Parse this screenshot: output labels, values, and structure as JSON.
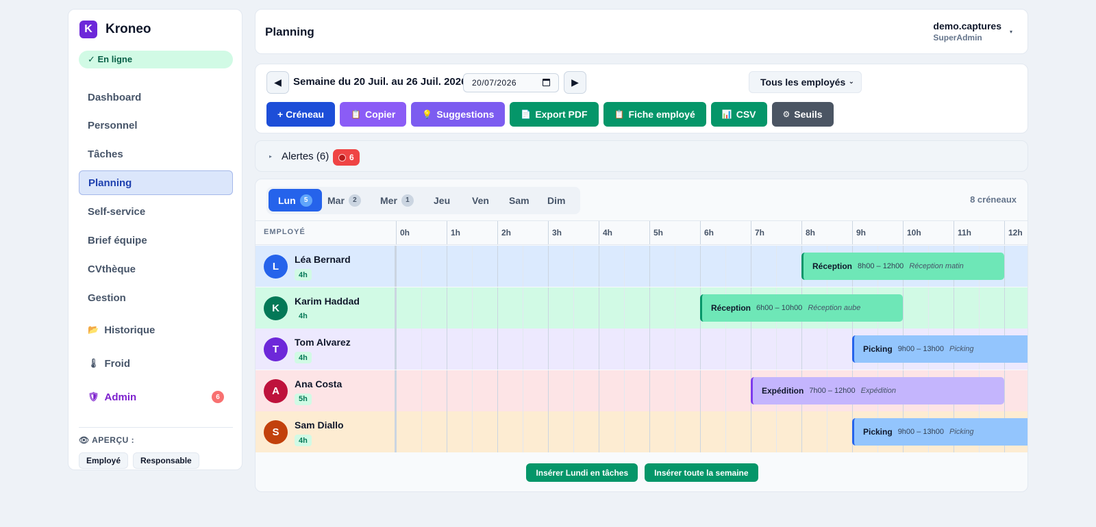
{
  "app": {
    "name": "Kroneo",
    "logo_letter": "K",
    "status": "✓ En ligne"
  },
  "sidebar": {
    "items": [
      {
        "label": "Dashboard"
      },
      {
        "label": "Personnel"
      },
      {
        "label": "Tâches"
      },
      {
        "label": "Planning",
        "active": true
      },
      {
        "label": "Self-service"
      },
      {
        "label": "Brief équipe"
      },
      {
        "label": "CVthèque"
      },
      {
        "label": "Gestion"
      },
      {
        "label": "Historique",
        "icon": "folder-icon",
        "glyph": "📂"
      },
      {
        "label": "Froid",
        "icon": "thermometer-icon",
        "glyph": "🌡"
      },
      {
        "label": "Admin",
        "icon": "shield-icon",
        "glyph": "🛡",
        "badge": "6"
      }
    ],
    "apercu": {
      "icon": "eye-icon",
      "glyph": "👁",
      "label": "APERÇU :",
      "buttons": [
        "Employé",
        "Responsable"
      ]
    }
  },
  "header": {
    "title": "Planning",
    "user_name": "demo.captures",
    "user_role": "SuperAdmin",
    "caret": "▾"
  },
  "toolbar": {
    "prev": "◀",
    "next": "▶",
    "week_label": "Semaine du 20 Juil. au 26 Juil. 2026",
    "date_value": "20/07/2026",
    "employee_filter": "Tous les employés",
    "actions": [
      {
        "label": "+ Créneau",
        "glyph": ""
      },
      {
        "label": "Copier",
        "glyph": "📋"
      },
      {
        "label": "Suggestions",
        "glyph": "💡"
      },
      {
        "label": "Export PDF",
        "glyph": "📄"
      },
      {
        "label": "Fiche employé",
        "glyph": "📋"
      },
      {
        "label": "CSV",
        "glyph": "📊"
      },
      {
        "label": "Seuils",
        "glyph": "⚙"
      }
    ]
  },
  "alerts": {
    "label": "Alertes (6)",
    "badge": "6",
    "caret": "▸"
  },
  "planning": {
    "days": [
      {
        "label": "Lun",
        "count": "5",
        "active": true
      },
      {
        "label": "Mar",
        "count": "2"
      },
      {
        "label": "Mer",
        "count": "1"
      },
      {
        "label": "Jeu"
      },
      {
        "label": "Ven"
      },
      {
        "label": "Sam"
      },
      {
        "label": "Dim"
      }
    ],
    "slots_count": "8 créneaux",
    "employee_header": "EMPLOYÉ",
    "hours": [
      "0h",
      "1h",
      "2h",
      "3h",
      "4h",
      "5h",
      "6h",
      "7h",
      "8h",
      "9h",
      "10h",
      "11h",
      "12h"
    ],
    "rows": [
      {
        "initial": "L",
        "name": "Léa Bernard",
        "hours": "4h",
        "avatar_color": "#2563eb",
        "row_color": "#dbeafe",
        "slot": {
          "type": "Réception",
          "time": "8h00 – 12h00",
          "note": "Réception matin",
          "start": 8,
          "end": 12,
          "color": "green"
        }
      },
      {
        "initial": "K",
        "name": "Karim Haddad",
        "hours": "4h",
        "avatar_color": "#047857",
        "row_color": "#d1fae5",
        "slot": {
          "type": "Réception",
          "time": "6h00 – 10h00",
          "note": "Réception aube",
          "start": 6,
          "end": 10,
          "color": "green"
        }
      },
      {
        "initial": "T",
        "name": "Tom Alvarez",
        "hours": "4h",
        "avatar_color": "#6d28d9",
        "row_color": "#ede9fe",
        "slot": {
          "type": "Picking",
          "time": "9h00 – 13h00",
          "note": "Picking",
          "start": 9,
          "end": 13,
          "color": "blue"
        }
      },
      {
        "initial": "A",
        "name": "Ana Costa",
        "hours": "5h",
        "avatar_color": "#be123c",
        "row_color": "#fde4e6",
        "slot": {
          "type": "Expédition",
          "time": "7h00 – 12h00",
          "note": "Expédition",
          "start": 7,
          "end": 12,
          "color": "purple"
        }
      },
      {
        "initial": "S",
        "name": "Sam Diallo",
        "hours": "4h",
        "avatar_color": "#c2410c",
        "row_color": "#fdecd2",
        "slot": {
          "type": "Picking",
          "time": "9h00 – 13h00",
          "note": "Picking",
          "start": 9,
          "end": 13,
          "color": "blue"
        }
      }
    ],
    "footer_buttons": [
      "Insérer Lundi en tâches",
      "Insérer toute la semaine"
    ]
  }
}
